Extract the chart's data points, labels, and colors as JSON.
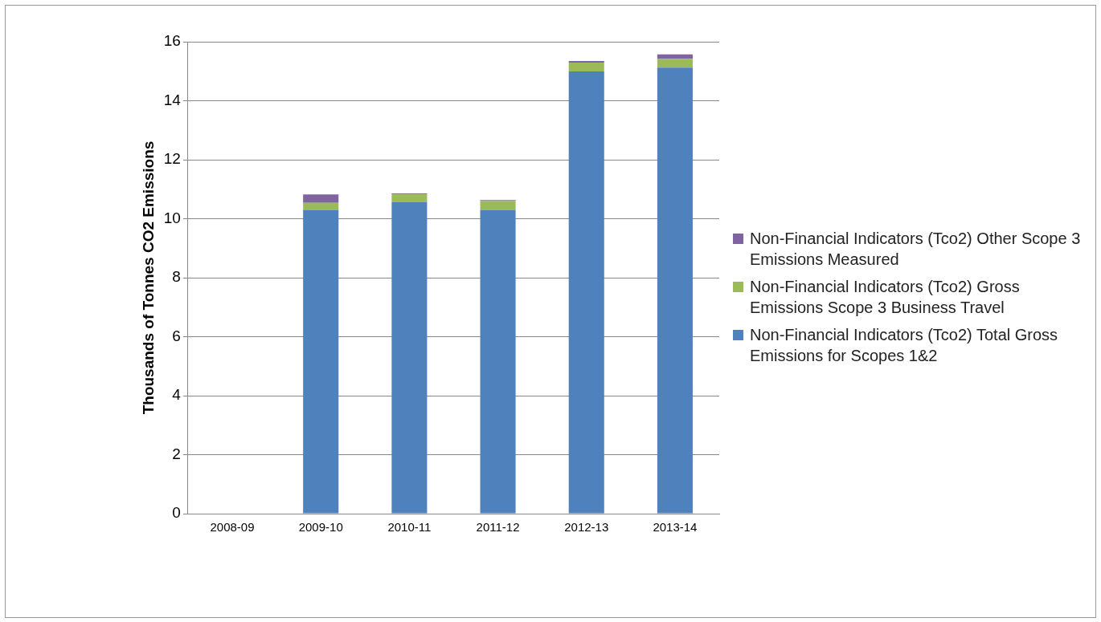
{
  "chart_data": {
    "type": "bar",
    "stacked": true,
    "ylabel": "Thousands of Tonnes CO2 Emissions",
    "categories": [
      "2008-09",
      "2009-10",
      "2010-11",
      "2011-12",
      "2012-13",
      "2013-14"
    ],
    "series": [
      {
        "name": "Non-Financial Indicators (Tco2) Total Gross Emissions for Scopes 1&2",
        "color": "#4f81bd",
        "values": [
          null,
          10.3,
          10.56,
          10.3,
          14.99,
          15.12
        ]
      },
      {
        "name": "Non-Financial Indicators (Tco2) Gross Emissions Scope 3 Business Travel",
        "color": "#9bbb59",
        "values": [
          null,
          0.24,
          0.26,
          0.3,
          0.3,
          0.3
        ]
      },
      {
        "name": "Non-Financial Indicators (Tco2) Other Scope 3  Emissions Measured",
        "color": "#8064a2",
        "values": [
          null,
          0.28,
          0.04,
          0.03,
          0.06,
          0.15
        ]
      }
    ],
    "ylim": [
      0,
      16
    ],
    "yticks": [
      0,
      2,
      4,
      6,
      8,
      10,
      12,
      14,
      16
    ],
    "grid": "y",
    "legend": "right"
  }
}
